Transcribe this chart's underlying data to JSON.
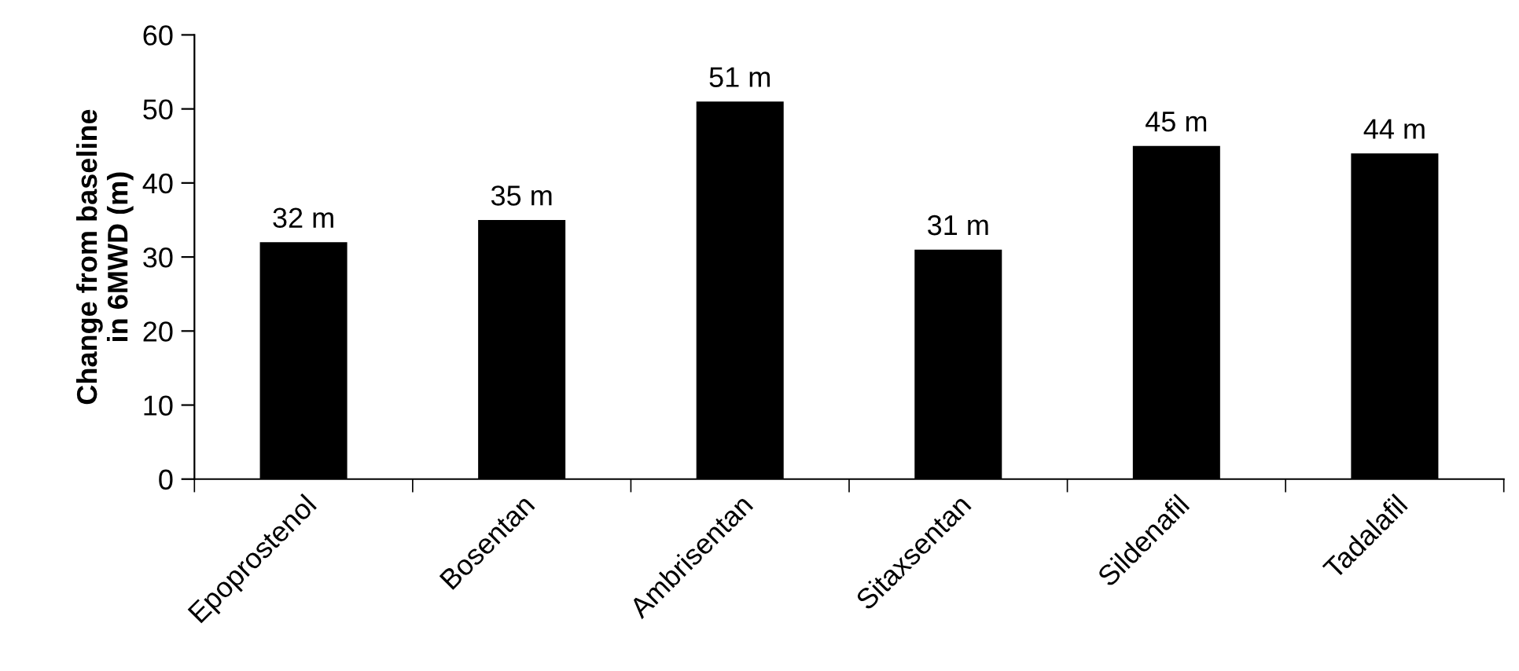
{
  "chart_data": {
    "type": "bar",
    "ylabel": "Change from baseline\nin 6MWD (m)",
    "categories": [
      "Epoprostenol",
      "Bosentan",
      "Ambrisentan",
      "Sitaxsentan",
      "Sildenafil",
      "Tadalafil"
    ],
    "values": [
      32,
      35,
      51,
      31,
      45,
      44
    ],
    "value_labels": [
      "32 m",
      "35 m",
      "51 m",
      "31 m",
      "45 m",
      "44 m"
    ],
    "color": "#000000",
    "ylim": [
      0,
      60
    ],
    "yticks": [
      0,
      10,
      20,
      30,
      40,
      50,
      60
    ],
    "grid": false,
    "legend": false
  }
}
